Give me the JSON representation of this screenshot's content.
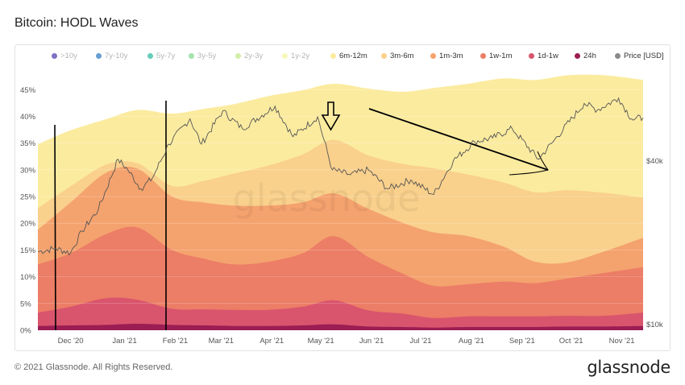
{
  "page": {
    "title": "Bitcoin: HODL Waves",
    "footer": "© 2021 Glassnode. All Rights Reserved.",
    "brand": "glassnode",
    "watermark": "glassnode"
  },
  "chart_data": {
    "type": "area",
    "title": "Bitcoin: HODL Waves",
    "stacked": true,
    "legend_position": "top",
    "grid": true,
    "legend": [
      {
        "name": ">10y",
        "color": "#5b4fb3",
        "active": false
      },
      {
        "name": "7y-10y",
        "color": "#3f86c7",
        "active": false
      },
      {
        "name": "5y-7y",
        "color": "#3fc1a9",
        "active": false
      },
      {
        "name": "3y-5y",
        "color": "#8ddc9a",
        "active": false
      },
      {
        "name": "2y-3y",
        "color": "#c8ea94",
        "active": false
      },
      {
        "name": "1y-2y",
        "color": "#f5f5a8",
        "active": false
      },
      {
        "name": "6m-12m",
        "color": "#fbeb9f",
        "active": true
      },
      {
        "name": "3m-6m",
        "color": "#f9d08c",
        "active": true
      },
      {
        "name": "1m-3m",
        "color": "#f4a26e",
        "active": true
      },
      {
        "name": "1w-1m",
        "color": "#ec7d66",
        "active": true
      },
      {
        "name": "1d-1w",
        "color": "#d9546d",
        "active": true
      },
      {
        "name": "24h",
        "color": "#9b1d53",
        "active": true
      },
      {
        "name": "Price [USD]",
        "color": "#8a8a8a",
        "active": true
      }
    ],
    "x_labels": [
      "Dec '20",
      "Jan '21",
      "Feb '21",
      "Mar '21",
      "Apr '21",
      "May '21",
      "Jun '21",
      "Jul '21",
      "Aug '21",
      "Sep '21",
      "Oct '21",
      "Nov '21"
    ],
    "x_range": [
      "2020-11-20",
      "2021-11-25"
    ],
    "y_left": {
      "min": 0,
      "max": 47,
      "ticks": [
        0,
        5,
        10,
        15,
        20,
        25,
        30,
        35,
        40,
        45
      ],
      "labels": [
        "0%",
        "5%",
        "10%",
        "15%",
        "20%",
        "25%",
        "30%",
        "35%",
        "40%",
        "45%"
      ]
    },
    "y_right": {
      "scale": "log",
      "min": 9500,
      "max": 80000,
      "ticks": [
        10000,
        40000
      ],
      "labels": [
        "$10k",
        "$40k"
      ]
    },
    "sample_x": [
      "2020-11-20",
      "2020-12-10",
      "2021-01-01",
      "2021-01-20",
      "2021-02-10",
      "2021-03-01",
      "2021-03-20",
      "2021-04-10",
      "2021-05-01",
      "2021-05-20",
      "2021-06-10",
      "2021-07-01",
      "2021-07-20",
      "2021-08-10",
      "2021-09-01",
      "2021-09-20",
      "2021-10-10",
      "2021-11-01",
      "2021-11-25"
    ],
    "series": [
      {
        "name": "24h",
        "color": "#9b1d53",
        "values": [
          0.8,
          0.9,
          1.0,
          1.2,
          1.0,
          0.9,
          0.8,
          0.8,
          0.9,
          1.1,
          0.7,
          0.6,
          0.5,
          0.6,
          0.6,
          0.6,
          0.7,
          0.7,
          0.8
        ]
      },
      {
        "name": "1d-1w",
        "color": "#d9546d",
        "values": [
          2.5,
          3.5,
          5.0,
          4.5,
          3.0,
          3.0,
          3.0,
          3.0,
          3.5,
          4.5,
          3.0,
          2.5,
          1.8,
          2.0,
          2.0,
          2.0,
          2.0,
          2.0,
          2.5
        ]
      },
      {
        "name": "1w-1m",
        "color": "#ec7d66",
        "values": [
          9.0,
          10.0,
          12.0,
          13.5,
          11.0,
          9.5,
          8.5,
          9.0,
          10.0,
          12.0,
          10.0,
          7.5,
          6.0,
          6.0,
          6.5,
          6.2,
          7.0,
          8.0,
          8.5
        ]
      },
      {
        "name": "1m-3m",
        "color": "#f4a26e",
        "values": [
          6.5,
          9.5,
          11.5,
          11.0,
          10.0,
          10.5,
          11.0,
          10.5,
          9.5,
          8.0,
          9.0,
          9.5,
          10.0,
          9.0,
          6.5,
          4.0,
          3.0,
          4.0,
          5.5
        ]
      },
      {
        "name": "3m-6m",
        "color": "#f9d08c",
        "values": [
          4.0,
          3.0,
          1.5,
          1.0,
          2.0,
          4.0,
          6.0,
          7.5,
          9.0,
          10.0,
          10.0,
          11.0,
          12.0,
          11.5,
          12.0,
          13.0,
          13.5,
          11.0,
          7.5
        ]
      },
      {
        "name": "6m-12m",
        "color": "#fbeb9f",
        "values": [
          12.0,
          10.5,
          8.5,
          10.0,
          13.5,
          13.5,
          13.0,
          13.0,
          12.0,
          10.5,
          12.5,
          13.5,
          15.0,
          17.0,
          19.5,
          21.0,
          21.5,
          22.0,
          22.0
        ]
      }
    ],
    "price": {
      "name": "Price [USD]",
      "values": [
        [
          "2020-11-20",
          18500
        ],
        [
          "2020-12-01",
          19000
        ],
        [
          "2020-12-10",
          18300
        ],
        [
          "2020-12-17",
          22000
        ],
        [
          "2020-12-27",
          26500
        ],
        [
          "2021-01-08",
          40500
        ],
        [
          "2021-01-14",
          37000
        ],
        [
          "2021-01-22",
          31500
        ],
        [
          "2021-01-29",
          34500
        ],
        [
          "2021-02-08",
          46000
        ],
        [
          "2021-02-21",
          57000
        ],
        [
          "2021-02-28",
          46000
        ],
        [
          "2021-03-13",
          61000
        ],
        [
          "2021-03-25",
          52500
        ],
        [
          "2021-04-14",
          63500
        ],
        [
          "2021-04-25",
          49000
        ],
        [
          "2021-05-10",
          58000
        ],
        [
          "2021-05-19",
          37000
        ],
        [
          "2021-05-30",
          35500
        ],
        [
          "2021-06-10",
          37000
        ],
        [
          "2021-06-22",
          31500
        ],
        [
          "2021-07-06",
          34000
        ],
        [
          "2021-07-20",
          30000
        ],
        [
          "2021-08-01",
          40000
        ],
        [
          "2021-08-14",
          47000
        ],
        [
          "2021-08-25",
          48500
        ],
        [
          "2021-09-06",
          52500
        ],
        [
          "2021-09-22",
          40500
        ],
        [
          "2021-10-01",
          47000
        ],
        [
          "2021-10-20",
          65000
        ],
        [
          "2021-10-28",
          61500
        ],
        [
          "2021-11-10",
          68000
        ],
        [
          "2021-11-18",
          57000
        ],
        [
          "2021-11-25",
          57500
        ]
      ]
    }
  }
}
